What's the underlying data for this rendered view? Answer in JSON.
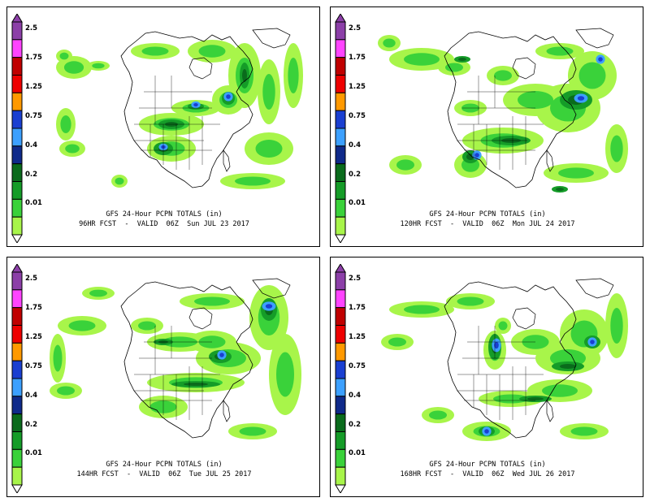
{
  "colorbar": {
    "labels": [
      "2.5",
      "1.75",
      "1.25",
      "0.75",
      "0.4",
      "0.2",
      "0.01"
    ],
    "colors": [
      "#8c3fa8",
      "#ff44ff",
      "#c00000",
      "#ee0000",
      "#ff9900",
      "#1a3fd1",
      "#3ca0ff",
      "#0f2a8a",
      "#0a6b1c",
      "#159c28",
      "#3ad23a",
      "#a8f54a"
    ]
  },
  "panels": [
    {
      "title": "GFS 24-Hour PCPN TOTALS (in)",
      "subtitle": "96HR FCST  -  VALID  06Z  Sun JUL 23 2017"
    },
    {
      "title": "GFS 24-Hour PCPN TOTALS (in)",
      "subtitle": "120HR FCST  -  VALID  06Z  Mon JUL 24 2017"
    },
    {
      "title": "GFS 24-Hour PCPN TOTALS (in)",
      "subtitle": "144HR FCST  -  VALID  06Z  Tue JUL 25 2017"
    },
    {
      "title": "GFS 24-Hour PCPN TOTALS (in)",
      "subtitle": "168HR FCST  -  VALID  06Z  Wed JUL 26 2017"
    }
  ]
}
